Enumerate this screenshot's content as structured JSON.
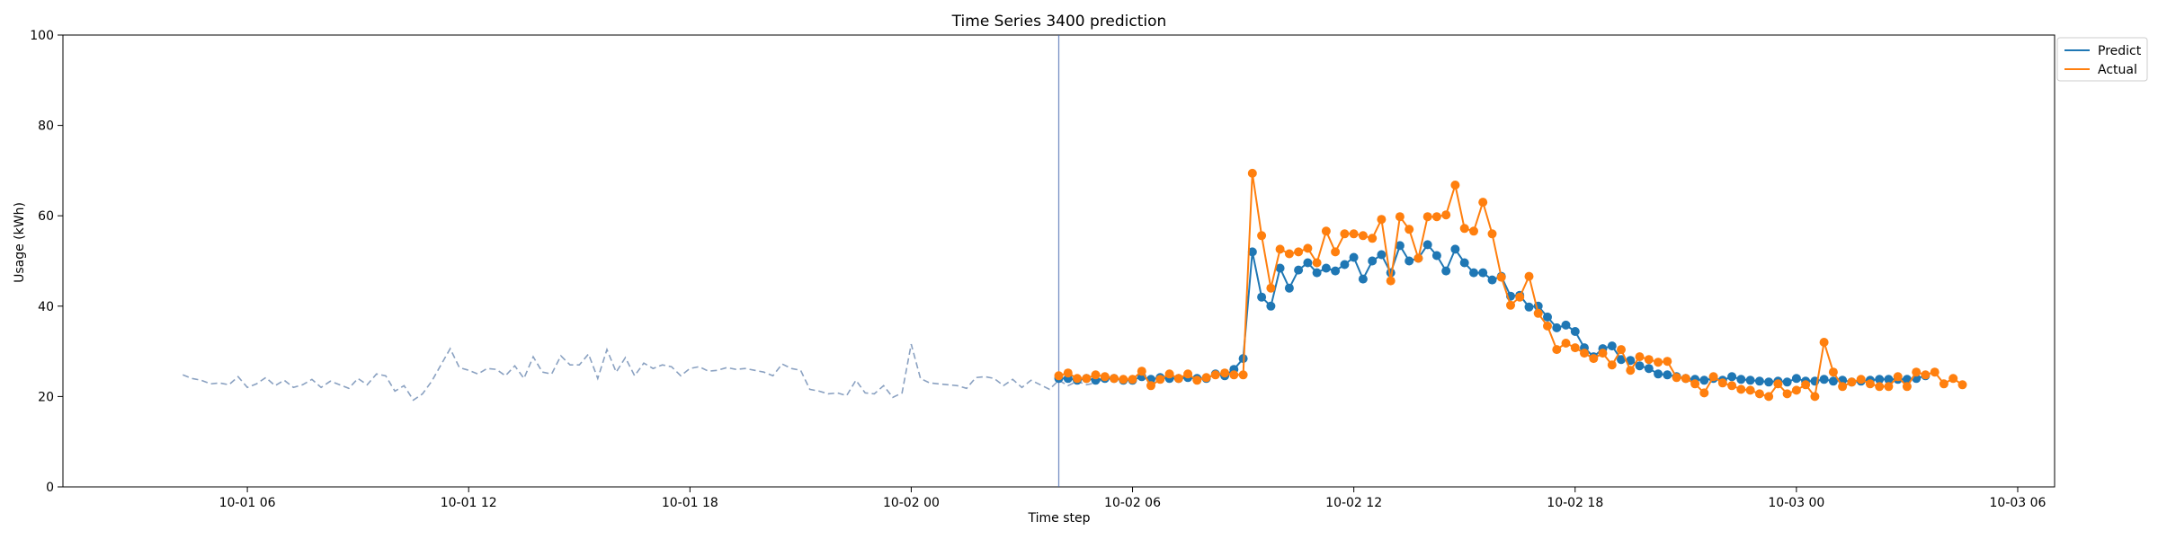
{
  "chart_data": {
    "type": "line",
    "title": "Time Series 3400 prediction",
    "xlabel": "Time step",
    "ylabel": "Usage (kWh)",
    "ylim": [
      0,
      100
    ],
    "yticks": [
      0,
      20,
      40,
      60,
      80,
      100
    ],
    "xlim": [
      "2024-10-01 01:00",
      "2024-10-03 07:00"
    ],
    "xticks": [
      {
        "t": "2024-10-01 06:00",
        "label": "10-01 06"
      },
      {
        "t": "2024-10-01 12:00",
        "label": "10-01 12"
      },
      {
        "t": "2024-10-01 18:00",
        "label": "10-01 18"
      },
      {
        "t": "2024-10-02 00:00",
        "label": "10-02 00"
      },
      {
        "t": "2024-10-02 06:00",
        "label": "10-02 06"
      },
      {
        "t": "2024-10-02 12:00",
        "label": "10-02 12"
      },
      {
        "t": "2024-10-02 18:00",
        "label": "10-02 18"
      },
      {
        "t": "2024-10-03 00:00",
        "label": "10-03 00"
      },
      {
        "t": "2024-10-03 06:00",
        "label": "10-03 06"
      }
    ],
    "grid": false,
    "legend": "upper-right-outside",
    "split_time": "2024-10-02 04:00",
    "step_minutes": 15,
    "history": {
      "start": "2024-10-01 04:15",
      "color": "#8aa1c1",
      "values": [
        24.8,
        24.0,
        23.6,
        22.8,
        23.0,
        22.6,
        24.4,
        22.0,
        22.8,
        24.2,
        22.4,
        23.6,
        22.0,
        22.6,
        23.8,
        22.0,
        23.4,
        22.6,
        21.8,
        24.0,
        22.6,
        25.0,
        24.6,
        21.2,
        22.4,
        19.2,
        20.6,
        23.4,
        27.0,
        30.6,
        26.4,
        25.8,
        25.0,
        26.2,
        26.0,
        24.6,
        26.8,
        24.0,
        28.8,
        25.4,
        25.0,
        29.0,
        27.0,
        27.0,
        29.4,
        24.0,
        30.4,
        25.4,
        28.6,
        24.6,
        27.4,
        26.2,
        27.0,
        26.6,
        24.6,
        26.2,
        26.6,
        25.6,
        25.8,
        26.4,
        26.0,
        26.2,
        25.8,
        25.4,
        24.6,
        27.2,
        26.2,
        25.8,
        21.6,
        21.2,
        20.6,
        20.8,
        20.2,
        23.6,
        20.8,
        20.6,
        22.4,
        19.8,
        20.8,
        31.6,
        24.0,
        23.0,
        22.8,
        22.6,
        22.4,
        21.8,
        24.2,
        24.4,
        24.0,
        22.4,
        23.8,
        22.0,
        23.6,
        22.6,
        21.6,
        23.6,
        22.4,
        23.4,
        22.6,
        23.0,
        24.0,
        24.6
      ]
    },
    "series": [
      {
        "name": "Predict",
        "color": "#1f77b4",
        "start": "2024-10-02 04:00",
        "values": [
          24.0,
          24.0,
          23.6,
          24.0,
          23.6,
          24.0,
          24.0,
          23.6,
          23.6,
          24.4,
          23.8,
          24.2,
          24.0,
          24.0,
          24.2,
          24.0,
          24.0,
          25.0,
          24.6,
          26.0,
          28.4,
          52.0,
          42.0,
          40.0,
          48.4,
          44.0,
          48.0,
          49.6,
          47.4,
          48.4,
          47.8,
          49.2,
          50.8,
          46.0,
          50.0,
          51.4,
          47.4,
          53.4,
          50.0,
          50.6,
          53.6,
          51.2,
          47.8,
          52.6,
          49.6,
          47.4,
          47.4,
          45.8,
          46.6,
          42.2,
          42.4,
          39.8,
          40.0,
          37.6,
          35.2,
          35.8,
          34.4,
          30.8,
          28.8,
          30.6,
          31.2,
          28.2,
          28.0,
          26.8,
          26.2,
          25.0,
          24.8,
          24.4,
          24.0,
          23.8,
          23.6,
          24.0,
          23.6,
          24.4,
          23.8,
          23.6,
          23.4,
          23.2,
          23.4,
          23.2,
          24.0,
          23.4,
          23.4,
          23.8,
          23.4,
          23.6,
          23.2,
          23.4,
          23.6,
          23.8,
          23.8,
          23.8,
          23.8,
          24.0,
          24.6
        ]
      },
      {
        "name": "Actual",
        "color": "#ff7f0e",
        "start": "2024-10-02 04:00",
        "values": [
          24.6,
          25.2,
          24.0,
          24.0,
          24.8,
          24.4,
          24.0,
          23.8,
          23.8,
          25.6,
          22.4,
          23.8,
          25.0,
          24.0,
          25.0,
          23.6,
          24.2,
          24.8,
          25.2,
          24.8,
          24.8,
          69.4,
          55.6,
          44.0,
          52.6,
          51.6,
          52.0,
          52.8,
          49.6,
          56.6,
          52.0,
          56.0,
          56.0,
          55.6,
          55.0,
          59.2,
          45.6,
          59.8,
          57.0,
          50.6,
          59.8,
          59.8,
          60.2,
          66.8,
          57.2,
          56.6,
          63.0,
          56.0,
          46.4,
          40.2,
          42.0,
          46.6,
          38.4,
          35.6,
          30.4,
          31.8,
          30.8,
          29.6,
          28.4,
          29.6,
          27.0,
          30.4,
          25.8,
          28.8,
          28.2,
          27.6,
          27.8,
          24.2,
          24.0,
          22.8,
          20.8,
          24.4,
          23.0,
          22.4,
          21.6,
          21.4,
          20.6,
          20.0,
          22.8,
          20.6,
          21.4,
          22.6,
          20.0,
          32.0,
          25.4,
          22.2,
          23.2,
          23.8,
          22.8,
          22.2,
          22.2,
          24.4,
          22.2,
          25.4,
          24.8,
          25.4,
          22.8,
          24.0,
          22.6
        ]
      }
    ]
  }
}
